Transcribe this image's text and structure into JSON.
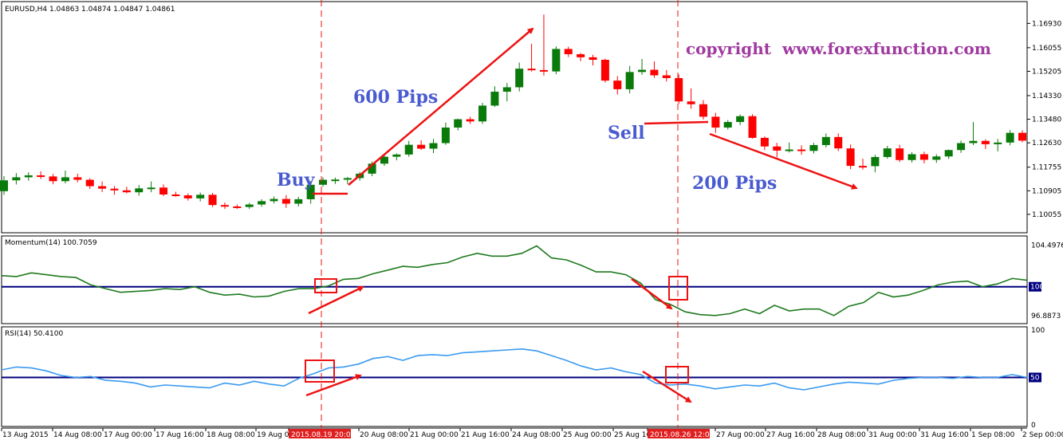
{
  "colors": {
    "background": "#ffffff",
    "bull": "#0a7a0a",
    "bear": "#ff0000",
    "momentum_line": "#1f7a1f",
    "rsi_line": "#3a9af0",
    "level_line": "#000080",
    "annotation_text": "#4a5bd0",
    "copyright_text": "#a03aa0",
    "marker_red": "#ee1111"
  },
  "chart_data": [
    {
      "type": "candlestick",
      "title": "EURUSD,H4  1.04863 1.04874 1.04847 1.04861",
      "ylim": [
        1.0945,
        1.176
      ],
      "y_ticks": [
        "1.16930",
        "1.16055",
        "1.15205",
        "1.14330",
        "1.13480",
        "1.12630",
        "1.11755",
        "1.10905",
        "1.10055"
      ],
      "ohlc": [
        [
          1.1089,
          1.1143,
          1.1076,
          1.1128
        ],
        [
          1.1128,
          1.1154,
          1.1113,
          1.1139
        ],
        [
          1.1139,
          1.1157,
          1.1127,
          1.1146
        ],
        [
          1.1146,
          1.116,
          1.1133,
          1.1142
        ],
        [
          1.1142,
          1.1151,
          1.1114,
          1.1125
        ],
        [
          1.1125,
          1.1163,
          1.1117,
          1.1139
        ],
        [
          1.1139,
          1.1152,
          1.1121,
          1.113
        ],
        [
          1.113,
          1.1136,
          1.1097,
          1.1107
        ],
        [
          1.1107,
          1.1124,
          1.1086,
          1.1098
        ],
        [
          1.1098,
          1.1107,
          1.1076,
          1.1092
        ],
        [
          1.1092,
          1.1105,
          1.1081,
          1.1085
        ],
        [
          1.1085,
          1.1111,
          1.1073,
          1.1099
        ],
        [
          1.1099,
          1.1124,
          1.1085,
          1.1102
        ],
        [
          1.1102,
          1.1113,
          1.1071,
          1.1077
        ],
        [
          1.1077,
          1.1087,
          1.1069,
          1.1074
        ],
        [
          1.1074,
          1.1081,
          1.1055,
          1.1063
        ],
        [
          1.1063,
          1.1084,
          1.1052,
          1.1076
        ],
        [
          1.1076,
          1.1083,
          1.1032,
          1.1039
        ],
        [
          1.1039,
          1.1048,
          1.1025,
          1.1034
        ],
        [
          1.1034,
          1.1041,
          1.1025,
          1.1032
        ],
        [
          1.1032,
          1.1047,
          1.1025,
          1.1041
        ],
        [
          1.1041,
          1.106,
          1.1033,
          1.1053
        ],
        [
          1.1053,
          1.107,
          1.1045,
          1.1061
        ],
        [
          1.1061,
          1.1075,
          1.1029,
          1.1044
        ],
        [
          1.1044,
          1.1069,
          1.1034,
          1.106
        ],
        [
          1.106,
          1.1125,
          1.1044,
          1.1112
        ],
        [
          1.1112,
          1.1139,
          1.1105,
          1.113
        ],
        [
          1.113,
          1.1138,
          1.1115,
          1.1131
        ],
        [
          1.1131,
          1.114,
          1.1115,
          1.1136
        ],
        [
          1.1136,
          1.1158,
          1.1127,
          1.1152
        ],
        [
          1.1152,
          1.1196,
          1.1143,
          1.1188
        ],
        [
          1.1188,
          1.1225,
          1.118,
          1.1213
        ],
        [
          1.1213,
          1.1225,
          1.12,
          1.1221
        ],
        [
          1.1221,
          1.127,
          1.1213,
          1.1256
        ],
        [
          1.1256,
          1.1272,
          1.1238,
          1.1242
        ],
        [
          1.1242,
          1.1277,
          1.1226,
          1.1262
        ],
        [
          1.1262,
          1.1336,
          1.1256,
          1.1318
        ],
        [
          1.1318,
          1.135,
          1.1308,
          1.1348
        ],
        [
          1.1348,
          1.1357,
          1.1331,
          1.134
        ],
        [
          1.134,
          1.1407,
          1.1331,
          1.1397
        ],
        [
          1.1397,
          1.1467,
          1.1392,
          1.1447
        ],
        [
          1.1447,
          1.1478,
          1.1412,
          1.1463
        ],
        [
          1.1463,
          1.1552,
          1.1448,
          1.153
        ],
        [
          1.153,
          1.162,
          1.152,
          1.1525
        ],
        [
          1.1525,
          1.1725,
          1.1505,
          1.152
        ],
        [
          1.152,
          1.161,
          1.151,
          1.1601
        ],
        [
          1.1601,
          1.1609,
          1.1572,
          1.1582
        ],
        [
          1.1582,
          1.1587,
          1.1557,
          1.1571
        ],
        [
          1.1571,
          1.158,
          1.1542,
          1.1562
        ],
        [
          1.1562,
          1.1566,
          1.148,
          1.1487
        ],
        [
          1.1487,
          1.1503,
          1.1437,
          1.1456
        ],
        [
          1.1456,
          1.154,
          1.1441,
          1.1518
        ],
        [
          1.1518,
          1.1565,
          1.1508,
          1.1526
        ],
        [
          1.1526,
          1.1556,
          1.1497,
          1.1506
        ],
        [
          1.1506,
          1.1525,
          1.1484,
          1.1496
        ],
        [
          1.1496,
          1.1509,
          1.1403,
          1.1412
        ],
        [
          1.1412,
          1.1459,
          1.1386,
          1.1402
        ],
        [
          1.1402,
          1.1417,
          1.1347,
          1.1357
        ],
        [
          1.1357,
          1.1371,
          1.1299,
          1.1318
        ],
        [
          1.1318,
          1.1345,
          1.1311,
          1.1338
        ],
        [
          1.1338,
          1.1365,
          1.1327,
          1.1359
        ],
        [
          1.1359,
          1.1366,
          1.1278,
          1.1281
        ],
        [
          1.1281,
          1.1286,
          1.1237,
          1.125
        ],
        [
          1.125,
          1.1263,
          1.1211,
          1.1235
        ],
        [
          1.1235,
          1.1264,
          1.1228,
          1.1239
        ],
        [
          1.1239,
          1.1254,
          1.122,
          1.1234
        ],
        [
          1.1234,
          1.1263,
          1.1225,
          1.1255
        ],
        [
          1.1255,
          1.1297,
          1.1246,
          1.1284
        ],
        [
          1.1284,
          1.1297,
          1.1233,
          1.1243
        ],
        [
          1.1243,
          1.1257,
          1.1168,
          1.118
        ],
        [
          1.118,
          1.1206,
          1.1167,
          1.1179
        ],
        [
          1.1179,
          1.122,
          1.1157,
          1.1212
        ],
        [
          1.1212,
          1.1252,
          1.1206,
          1.1243
        ],
        [
          1.1243,
          1.1256,
          1.1194,
          1.1201
        ],
        [
          1.1201,
          1.1229,
          1.1192,
          1.1222
        ],
        [
          1.1222,
          1.1231,
          1.1189,
          1.1202
        ],
        [
          1.1202,
          1.1222,
          1.1191,
          1.1214
        ],
        [
          1.1214,
          1.1239,
          1.1205,
          1.1237
        ],
        [
          1.1237,
          1.1271,
          1.1227,
          1.1262
        ],
        [
          1.1262,
          1.1338,
          1.1255,
          1.127
        ],
        [
          1.127,
          1.1276,
          1.1241,
          1.1258
        ],
        [
          1.1258,
          1.1277,
          1.1232,
          1.1264
        ],
        [
          1.1264,
          1.1309,
          1.1254,
          1.1299
        ],
        [
          1.1299,
          1.1308,
          1.1265,
          1.1271
        ]
      ],
      "annotations": [
        "600 Pips",
        "Buy",
        "Sell",
        "200 Pips",
        "copyright  www.forexfunction.com"
      ]
    },
    {
      "type": "line",
      "title": "Momentum(14) 100.7059",
      "ylim": [
        96.2,
        105.3
      ],
      "y_ticks": [
        "104.4976",
        "96.8873"
      ],
      "level": 100,
      "level_label": "100",
      "values": [
        101.2,
        101.1,
        101.5,
        101.3,
        101.1,
        101.0,
        100.2,
        99.8,
        99.4,
        99.5,
        99.6,
        99.8,
        99.7,
        100.0,
        99.4,
        99.1,
        99.2,
        98.9,
        99.0,
        99.5,
        99.8,
        99.8,
        100.1,
        100.8,
        100.9,
        101.4,
        101.8,
        102.2,
        102.1,
        102.4,
        102.6,
        103.2,
        103.6,
        103.3,
        103.3,
        103.6,
        104.4,
        103.1,
        102.9,
        102.3,
        101.6,
        101.6,
        101.3,
        100.4,
        98.6,
        98.1,
        97.3,
        97.0,
        96.9,
        97.1,
        97.6,
        97.1,
        98.0,
        97.4,
        97.6,
        97.6,
        96.9,
        97.9,
        98.3,
        99.4,
        98.9,
        99.1,
        99.6,
        100.2,
        100.5,
        100.6,
        100.0,
        100.3,
        100.9,
        100.7
      ],
      "markers": [
        "buy",
        "sell"
      ]
    },
    {
      "type": "line",
      "title": "RSI(14) 50.4100",
      "ylim": [
        0,
        100
      ],
      "y_ticks": [
        "100",
        "50",
        "0"
      ],
      "level": 50,
      "level_label": "50",
      "values": [
        58,
        61,
        60,
        57,
        52,
        50,
        51,
        47,
        46,
        44,
        40,
        42,
        41,
        40,
        39,
        44,
        42,
        46,
        43,
        41,
        49,
        54,
        60,
        61,
        64,
        70,
        72,
        68,
        73,
        74,
        73,
        76,
        77,
        78,
        79,
        80,
        78,
        73,
        68,
        62,
        58,
        60,
        56,
        53,
        44,
        42,
        43,
        41,
        38,
        40,
        42,
        41,
        44,
        39,
        37,
        40,
        43,
        45,
        44,
        43,
        47,
        49,
        50,
        50,
        49,
        51,
        50,
        50,
        53,
        50
      ],
      "markers": [
        "buy",
        "sell"
      ]
    }
  ],
  "x_labels": [
    "13 Aug 2015",
    "14 Aug 08:00",
    "17 Aug 00:00",
    "17 Aug 16:00",
    "18 Aug 08:00",
    "19 Aug 00",
    "2015.08.19 20:00",
    "20 Aug 08:00",
    "21 Aug 00:00",
    "21 Aug 16:00",
    "24 Aug 08:00",
    "25 Aug 00:00",
    "25 Aug 16",
    "2015.08.26 12:00",
    "27 Aug 00:00",
    "27 Aug 16:00",
    "28 Aug 08:00",
    "31 Aug 00:00",
    "31 Aug 16:00",
    "1 Sep 08:00",
    "2 Sep 00:00"
  ],
  "x_highlight_labels": [
    "2015.08.19 20:00",
    "2015.08.26 12:00"
  ]
}
